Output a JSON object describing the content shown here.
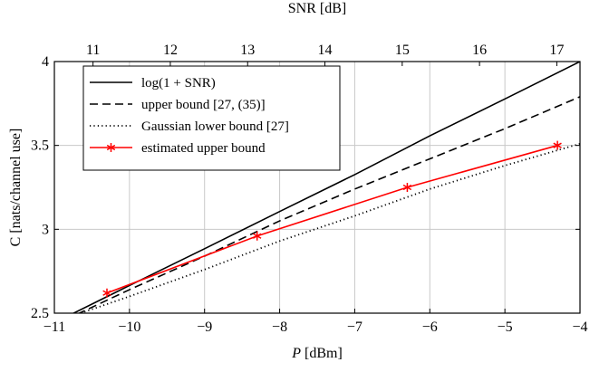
{
  "chart_data": {
    "type": "line",
    "xlabel": "P [dBm]",
    "x2label": "SNR [dB]",
    "ylabel": "C [nats/channel use]",
    "xlim": [
      -11,
      -4
    ],
    "x2lim": [
      10.5,
      17.3
    ],
    "ylim": [
      2.5,
      4
    ],
    "xticks": [
      "−11",
      "−10",
      "−9",
      "−8",
      "−7",
      "−6",
      "−5",
      "−4"
    ],
    "x2ticks": [
      "11",
      "12",
      "13",
      "14",
      "15",
      "16",
      "17"
    ],
    "yticks": [
      "2.5",
      "3",
      "3.5",
      "4"
    ],
    "grid": true,
    "legend_position": "top-left",
    "series": [
      {
        "name": "log(1 + SNR)",
        "style": "solid",
        "color": "#000000",
        "x": [
          -11.0,
          -10.0,
          -9.0,
          -8.0,
          -7.0,
          -6.0,
          -5.0,
          -4.0
        ],
        "y": [
          2.443,
          2.665,
          2.884,
          3.106,
          3.326,
          3.557,
          3.777,
          4.0
        ]
      },
      {
        "name": "upper bound [27, (35)]",
        "style": "dashed",
        "color": "#000000",
        "x": [
          -11.0,
          -10.0,
          -9.0,
          -8.0,
          -7.0,
          -6.0,
          -5.0,
          -4.0
        ],
        "y": [
          2.43,
          2.64,
          2.84,
          3.05,
          3.24,
          3.42,
          3.6,
          3.79
        ]
      },
      {
        "name": "Gaussian lower bound [27]",
        "style": "dotted",
        "color": "#000000",
        "x": [
          -10.65,
          -10.0,
          -9.0,
          -8.0,
          -7.0,
          -6.0,
          -5.0,
          -4.0
        ],
        "y": [
          2.5,
          2.6,
          2.76,
          2.93,
          3.08,
          3.24,
          3.38,
          3.51
        ]
      },
      {
        "name": "estimated upper bound",
        "style": "solid",
        "marker": "star",
        "color": "#ff0000",
        "x": [
          -10.3,
          -8.3,
          -6.3,
          -4.3
        ],
        "y": [
          2.62,
          2.96,
          3.25,
          3.5
        ]
      }
    ]
  }
}
